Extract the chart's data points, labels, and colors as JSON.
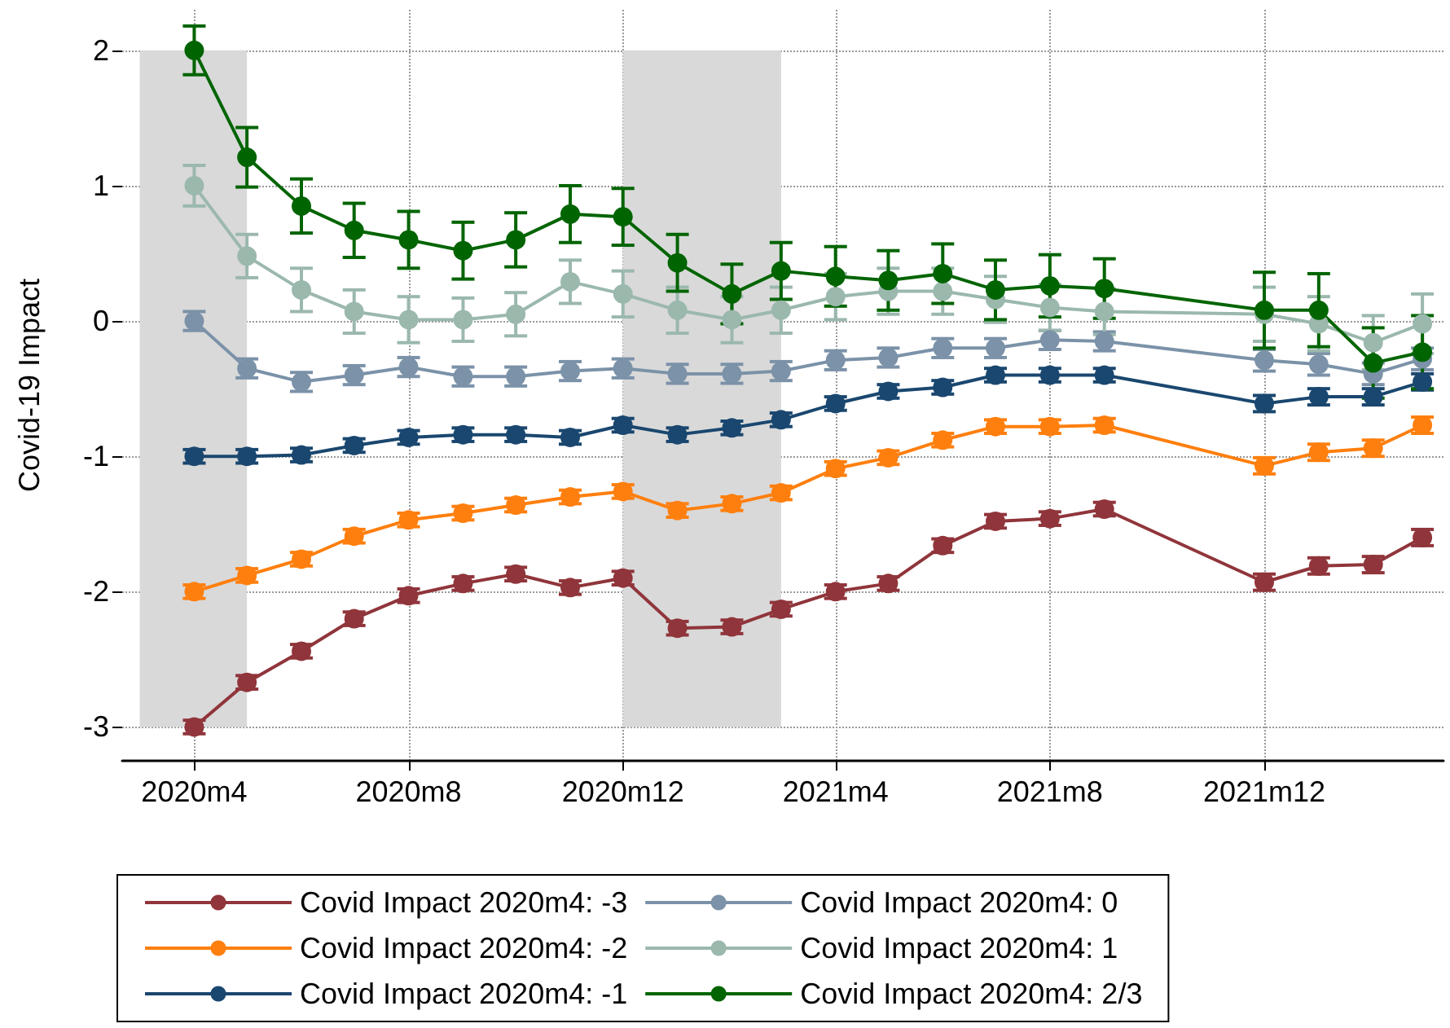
{
  "chart_data": {
    "type": "line",
    "ylabel": "Covid-19 Impact",
    "x": [
      "2020-04",
      "2020-05",
      "2020-06",
      "2020-07",
      "2020-08",
      "2020-09",
      "2020-10",
      "2020-11",
      "2020-12",
      "2021-01",
      "2021-02",
      "2021-03",
      "2021-04",
      "2021-05",
      "2021-06",
      "2021-07",
      "2021-08",
      "2021-09",
      "2021-12",
      "2022-01",
      "2022-02",
      "2022-03"
    ],
    "xlim": [
      "2020-02-20",
      "2022-03-13"
    ],
    "ylim": [
      -3.25,
      2.3
    ],
    "xticks": [
      {
        "value": "2020-04",
        "label": "2020m4"
      },
      {
        "value": "2020-08",
        "label": "2020m8"
      },
      {
        "value": "2020-12",
        "label": "2020m12"
      },
      {
        "value": "2021-04",
        "label": "2021m4"
      },
      {
        "value": "2021-08",
        "label": "2021m8"
      },
      {
        "value": "2021-12",
        "label": "2021m12"
      }
    ],
    "yticks": [
      -3,
      -2,
      -1,
      0,
      1,
      2
    ],
    "grid": true,
    "legend": "bottom",
    "marker": "circle",
    "line_style": "solid",
    "bands": [
      {
        "axis": "x",
        "from": "2020-03",
        "to": "2020-05",
        "color": "#d9d9d9"
      },
      {
        "axis": "x",
        "from": "2020-12",
        "to": "2021-03",
        "color": "#d9d9d9"
      }
    ],
    "series": [
      {
        "name": "Covid Impact 2020m4: -3",
        "color": "#90353b",
        "values": [
          -3.0,
          -2.67,
          -2.44,
          -2.2,
          -2.03,
          -1.94,
          -1.87,
          -1.97,
          -1.9,
          -2.27,
          -2.26,
          -2.13,
          -2.0,
          -1.94,
          -1.66,
          -1.48,
          -1.46,
          -1.39,
          -1.93,
          -1.81,
          -1.8,
          -1.6
        ],
        "errors": [
          0.05,
          0.05,
          0.05,
          0.05,
          0.05,
          0.05,
          0.05,
          0.05,
          0.05,
          0.05,
          0.05,
          0.05,
          0.05,
          0.05,
          0.05,
          0.05,
          0.05,
          0.05,
          0.06,
          0.06,
          0.06,
          0.06
        ]
      },
      {
        "name": "Covid Impact 2020m4: -2",
        "color": "#ff7f0e",
        "values": [
          -2.0,
          -1.88,
          -1.76,
          -1.59,
          -1.47,
          -1.42,
          -1.36,
          -1.3,
          -1.26,
          -1.4,
          -1.35,
          -1.27,
          -1.09,
          -1.01,
          -0.88,
          -0.78,
          -0.78,
          -0.77,
          -1.07,
          -0.97,
          -0.94,
          -0.77
        ],
        "errors": [
          0.05,
          0.05,
          0.05,
          0.05,
          0.05,
          0.05,
          0.05,
          0.05,
          0.05,
          0.05,
          0.05,
          0.05,
          0.05,
          0.05,
          0.05,
          0.05,
          0.05,
          0.05,
          0.06,
          0.06,
          0.06,
          0.06
        ]
      },
      {
        "name": "Covid Impact 2020m4: -1",
        "color": "#1a476f",
        "values": [
          -1.0,
          -1.0,
          -0.99,
          -0.92,
          -0.86,
          -0.84,
          -0.84,
          -0.86,
          -0.77,
          -0.84,
          -0.79,
          -0.73,
          -0.61,
          -0.52,
          -0.49,
          -0.4,
          -0.4,
          -0.4,
          -0.61,
          -0.56,
          -0.56,
          -0.45
        ],
        "errors": [
          0.05,
          0.05,
          0.05,
          0.05,
          0.05,
          0.05,
          0.05,
          0.05,
          0.05,
          0.05,
          0.05,
          0.05,
          0.05,
          0.05,
          0.05,
          0.05,
          0.05,
          0.05,
          0.06,
          0.06,
          0.06,
          0.06
        ]
      },
      {
        "name": "Covid Impact 2020m4: 0",
        "color": "#7b92a8",
        "values": [
          0.0,
          -0.35,
          -0.45,
          -0.4,
          -0.34,
          -0.41,
          -0.41,
          -0.37,
          -0.35,
          -0.39,
          -0.39,
          -0.37,
          -0.29,
          -0.27,
          -0.2,
          -0.2,
          -0.14,
          -0.15,
          -0.29,
          -0.32,
          -0.39,
          -0.28
        ],
        "errors": [
          0.07,
          0.07,
          0.07,
          0.07,
          0.07,
          0.07,
          0.07,
          0.07,
          0.07,
          0.07,
          0.07,
          0.07,
          0.07,
          0.07,
          0.07,
          0.07,
          0.07,
          0.07,
          0.08,
          0.08,
          0.08,
          0.08
        ]
      },
      {
        "name": "Covid Impact 2020m4: 1",
        "color": "#9bb8ad",
        "values": [
          1.0,
          0.48,
          0.23,
          0.07,
          0.01,
          0.01,
          0.05,
          0.29,
          0.2,
          0.08,
          0.01,
          0.08,
          0.18,
          0.22,
          0.22,
          0.16,
          0.1,
          0.07,
          0.05,
          -0.02,
          -0.16,
          -0.02
        ],
        "errors": [
          0.15,
          0.16,
          0.16,
          0.16,
          0.17,
          0.16,
          0.16,
          0.16,
          0.17,
          0.17,
          0.17,
          0.17,
          0.17,
          0.17,
          0.17,
          0.17,
          0.17,
          0.17,
          0.2,
          0.2,
          0.2,
          0.22
        ]
      },
      {
        "name": "Covid Impact 2020m4: 2/3",
        "color": "#006400",
        "values": [
          2.0,
          1.21,
          0.85,
          0.67,
          0.6,
          0.52,
          0.6,
          0.79,
          0.77,
          0.43,
          0.2,
          0.37,
          0.33,
          0.3,
          0.35,
          0.23,
          0.26,
          0.24,
          0.08,
          0.08,
          -0.31,
          -0.23
        ],
        "errors": [
          0.18,
          0.22,
          0.2,
          0.2,
          0.21,
          0.21,
          0.2,
          0.21,
          0.21,
          0.21,
          0.22,
          0.21,
          0.22,
          0.22,
          0.22,
          0.22,
          0.23,
          0.22,
          0.28,
          0.27,
          0.26,
          0.27
        ]
      }
    ]
  }
}
